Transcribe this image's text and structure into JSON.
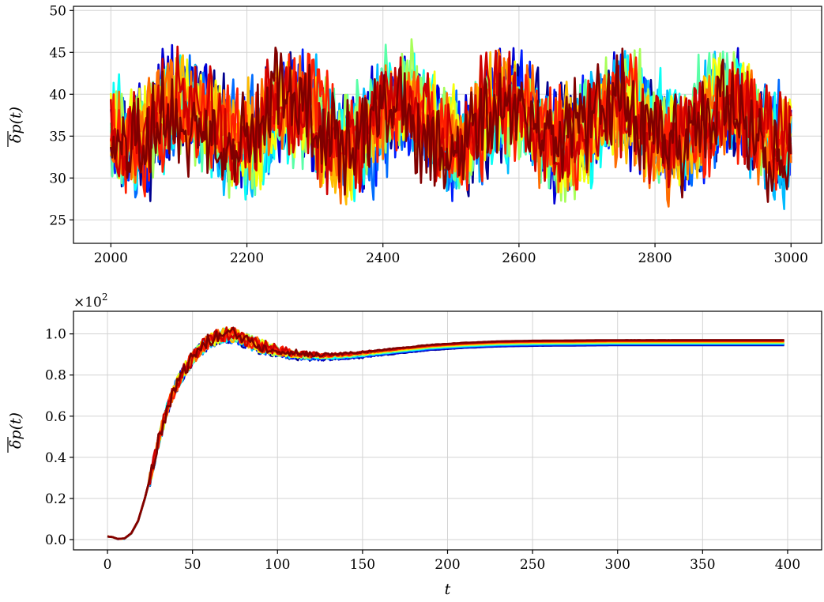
{
  "chart_data": [
    {
      "type": "line",
      "title": "",
      "xlabel": "",
      "ylabel": "δp(t)",
      "xlim": [
        1945,
        3045
      ],
      "ylim": [
        22.2,
        50.5
      ],
      "xticks": [
        "2000",
        "2200",
        "2400",
        "2600",
        "2800",
        "3000"
      ],
      "yticks": [
        "25",
        "30",
        "35",
        "40",
        "45",
        "50"
      ],
      "grid": true,
      "legend": "none",
      "series_count": 14,
      "x_range": [
        2000,
        3000
      ],
      "mean": 36.5,
      "slow_oscillation_period": 160,
      "slow_oscillation_amplitude": 2.5,
      "noise_amplitude": 6.0,
      "min": 23.5,
      "max": 49.2,
      "colormap": [
        "#00008f",
        "#0000ff",
        "#0080ff",
        "#00ffff",
        "#80ff80",
        "#ffff00",
        "#ff8000",
        "#ff0000",
        "#800000"
      ]
    },
    {
      "type": "line",
      "title": "",
      "xlabel": "t",
      "ylabel": "δp(t)",
      "y_multiplier": "×10",
      "y_multiplier_exp": "2",
      "xlim": [
        -20,
        420
      ],
      "ylim": [
        -0.05,
        1.11
      ],
      "xticks": [
        "0",
        "50",
        "100",
        "150",
        "200",
        "250",
        "300",
        "350",
        "400"
      ],
      "yticks": [
        "0.0",
        "0.2",
        "0.4",
        "0.6",
        "0.8",
        "1.0"
      ],
      "grid": true,
      "legend": "none",
      "series_count": 14,
      "x_range": [
        0,
        400
      ],
      "curve_points": [
        [
          0,
          0.015
        ],
        [
          3,
          0.012
        ],
        [
          6,
          0.003
        ],
        [
          10,
          0.005
        ],
        [
          14,
          0.03
        ],
        [
          18,
          0.09
        ],
        [
          22,
          0.2
        ],
        [
          26,
          0.33
        ],
        [
          30,
          0.48
        ],
        [
          35,
          0.63
        ],
        [
          40,
          0.74
        ],
        [
          45,
          0.82
        ],
        [
          50,
          0.88
        ],
        [
          55,
          0.93
        ],
        [
          60,
          0.965
        ],
        [
          65,
          0.985
        ],
        [
          70,
          0.995
        ],
        [
          75,
          0.99
        ],
        [
          80,
          0.975
        ],
        [
          90,
          0.94
        ],
        [
          100,
          0.915
        ],
        [
          110,
          0.9
        ],
        [
          120,
          0.892
        ],
        [
          130,
          0.89
        ],
        [
          140,
          0.893
        ],
        [
          150,
          0.9
        ],
        [
          170,
          0.918
        ],
        [
          190,
          0.935
        ],
        [
          210,
          0.945
        ],
        [
          230,
          0.952
        ],
        [
          250,
          0.955
        ],
        [
          300,
          0.958
        ],
        [
          350,
          0.958
        ],
        [
          400,
          0.958
        ]
      ],
      "end_spread": [
        0.945,
        0.97
      ],
      "colormap": [
        "#00008f",
        "#0000ff",
        "#0080ff",
        "#00ffff",
        "#80ff80",
        "#ffff00",
        "#ff8000",
        "#ff0000",
        "#800000"
      ]
    }
  ]
}
